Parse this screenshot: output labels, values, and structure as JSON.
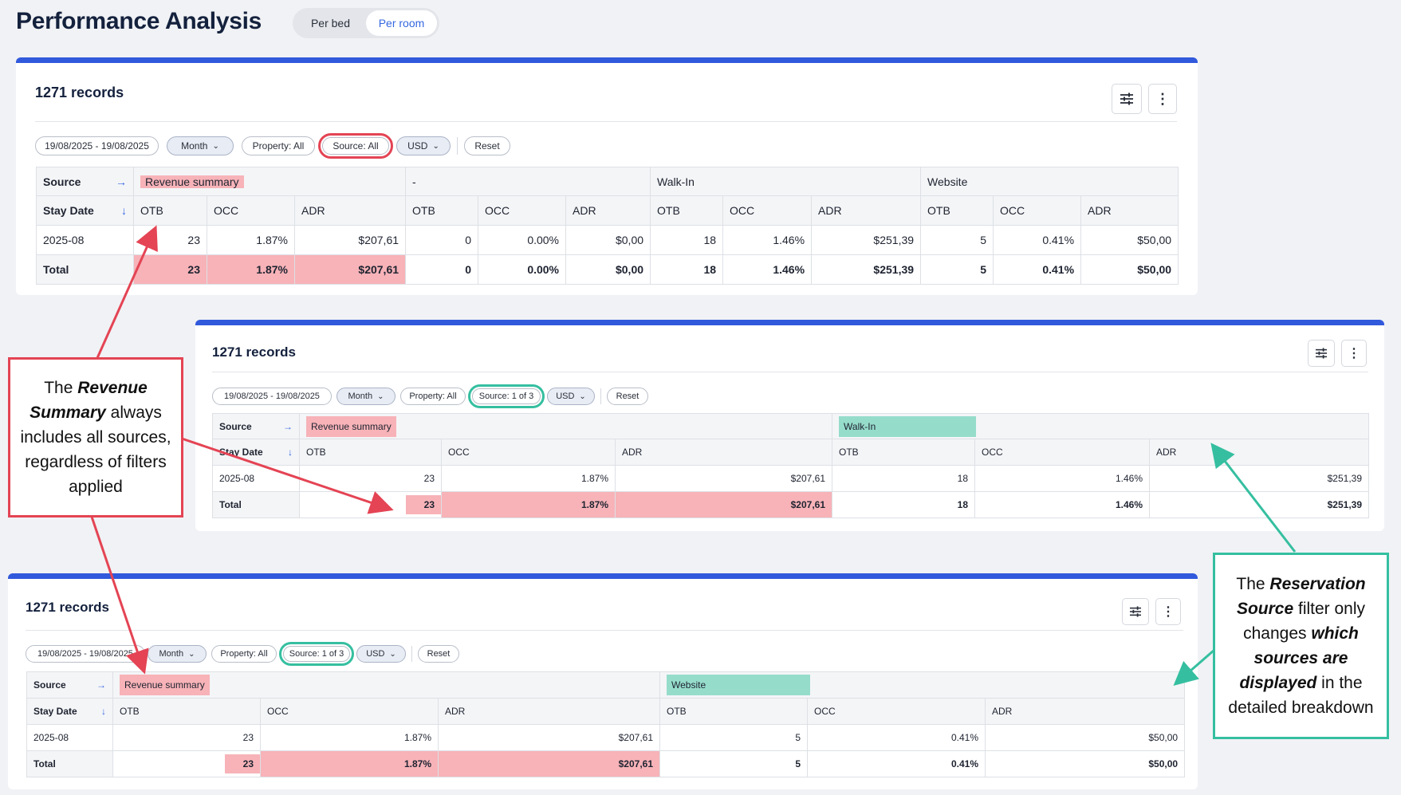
{
  "header": {
    "title": "Performance Analysis",
    "toggle": {
      "per_bed": "Per bed",
      "per_room": "Per room",
      "selected": "Per room"
    }
  },
  "common": {
    "records": "1271 records",
    "date_range": "19/08/2025 - 19/08/2025",
    "granularity": "Month",
    "property": "Property: All",
    "currency": "USD",
    "reset": "Reset",
    "row_source": "Source",
    "row_stay_date": "Stay Date",
    "col_otb": "OTB",
    "col_occ": "OCC",
    "col_adr": "ADR",
    "row_date": "2025-08",
    "row_total": "Total",
    "revenue_summary": "Revenue summary"
  },
  "table1": {
    "source_filter": "Source: All",
    "groups": [
      "Revenue summary",
      "-",
      "Walk-In",
      "Website"
    ],
    "data_row": [
      [
        "23",
        "1.87%",
        "$207,61"
      ],
      [
        "0",
        "0.00%",
        "$0,00"
      ],
      [
        "18",
        "1.46%",
        "$251,39"
      ],
      [
        "5",
        "0.41%",
        "$50,00"
      ]
    ],
    "total_row": [
      [
        "23",
        "1.87%",
        "$207,61"
      ],
      [
        "0",
        "0.00%",
        "$0,00"
      ],
      [
        "18",
        "1.46%",
        "$251,39"
      ],
      [
        "5",
        "0.41%",
        "$50,00"
      ]
    ]
  },
  "table2": {
    "source_filter": "Source: 1 of 3",
    "detail_source": "Walk-In",
    "data_row": [
      [
        "23",
        "1.87%",
        "$207,61"
      ],
      [
        "18",
        "1.46%",
        "$251,39"
      ]
    ],
    "total_row": [
      [
        "23",
        "1.87%",
        "$207,61"
      ],
      [
        "18",
        "1.46%",
        "$251,39"
      ]
    ]
  },
  "table3": {
    "source_filter": "Source: 1 of 3",
    "detail_source": "Website",
    "data_row": [
      [
        "23",
        "1.87%",
        "$207,61"
      ],
      [
        "5",
        "0.41%",
        "$50,00"
      ]
    ],
    "total_row": [
      [
        "23",
        "1.87%",
        "$207,61"
      ],
      [
        "5",
        "0.41%",
        "$50,00"
      ]
    ]
  },
  "callouts": {
    "left": {
      "t1": "The ",
      "b1": "Revenue Summary",
      "t2": " always includes all sources, regardless of filters applied"
    },
    "right": {
      "t1": "The ",
      "b1": "Reservation Source",
      "t2": " filter only changes ",
      "b2": "which sources are displayed",
      "t3": " in the detailed breakdown"
    }
  },
  "colors": {
    "accent": "#3159dc",
    "red": "#e44454",
    "teal": "#35bfa0",
    "pink": "#f7b3b8",
    "teal_fill": "#96dccb"
  }
}
